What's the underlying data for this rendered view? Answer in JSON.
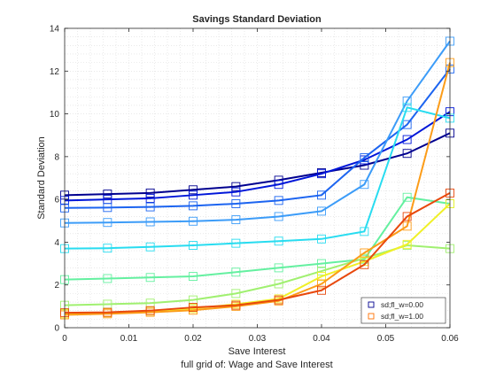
{
  "chart_data": {
    "type": "line",
    "title": "Savings Standard Deviation",
    "xlabel": "Save Interest",
    "ylabel": "Standard Deviation",
    "caption": "full grid of: Wage and Save Interest",
    "xlim": [
      0,
      0.06
    ],
    "ylim": [
      0,
      14
    ],
    "xticks": [
      0,
      0.01,
      0.02,
      0.03,
      0.04,
      0.05,
      0.06
    ],
    "xtick_labels": [
      "0",
      "0.01",
      "0.02",
      "0.03",
      "0.04",
      "0.05",
      "0.06"
    ],
    "yticks": [
      0,
      2,
      4,
      6,
      8,
      10,
      12,
      14
    ],
    "ytick_labels": [
      "0",
      "2",
      "4",
      "6",
      "8",
      "10",
      "12",
      "14"
    ],
    "grid": "minor dotted",
    "legend_position": "bottom-right",
    "legend": [
      {
        "label": "sd;fl_w=0.00",
        "color": "#00008f"
      },
      {
        "label": "sd;fl_w=1.00",
        "color": "#ff7000"
      }
    ],
    "x": [
      0,
      0.00667,
      0.01333,
      0.02,
      0.02667,
      0.03333,
      0.04,
      0.04667,
      0.05333,
      0.06
    ],
    "series": [
      {
        "color": "#00008f",
        "values": [
          6.2,
          6.25,
          6.3,
          6.45,
          6.6,
          6.9,
          7.25,
          7.6,
          8.15,
          9.1
        ]
      },
      {
        "color": "#0016d9",
        "values": [
          5.95,
          6.0,
          6.05,
          6.2,
          6.35,
          6.7,
          7.2,
          7.85,
          8.8,
          10.1
        ]
      },
      {
        "color": "#1c64f0",
        "values": [
          5.6,
          5.62,
          5.65,
          5.7,
          5.8,
          5.95,
          6.2,
          7.95,
          9.5,
          12.1
        ]
      },
      {
        "color": "#3c9cf8",
        "values": [
          4.9,
          4.92,
          4.95,
          4.98,
          5.05,
          5.2,
          5.45,
          6.7,
          10.6,
          13.4
        ]
      },
      {
        "color": "#28dcf0",
        "values": [
          3.7,
          3.72,
          3.78,
          3.85,
          3.95,
          4.05,
          4.15,
          4.5,
          10.3,
          9.8
        ]
      },
      {
        "color": "#64f0a0",
        "values": [
          2.25,
          2.3,
          2.35,
          2.4,
          2.6,
          2.8,
          3.0,
          3.2,
          6.1,
          5.8
        ]
      },
      {
        "color": "#a0f070",
        "values": [
          1.05,
          1.1,
          1.15,
          1.3,
          1.6,
          2.05,
          2.65,
          3.25,
          3.85,
          3.7
        ]
      },
      {
        "color": "#f0f028",
        "values": [
          0.65,
          0.7,
          0.78,
          0.9,
          1.1,
          1.35,
          2.4,
          3.1,
          3.9,
          5.8
        ]
      },
      {
        "color": "#fc9c18",
        "values": [
          0.6,
          0.65,
          0.72,
          0.82,
          1.0,
          1.25,
          2.05,
          3.5,
          4.75,
          12.4
        ]
      },
      {
        "color": "#e8480c",
        "values": [
          0.7,
          0.72,
          0.8,
          0.95,
          1.05,
          1.3,
          1.75,
          2.95,
          5.2,
          6.3
        ]
      }
    ]
  }
}
